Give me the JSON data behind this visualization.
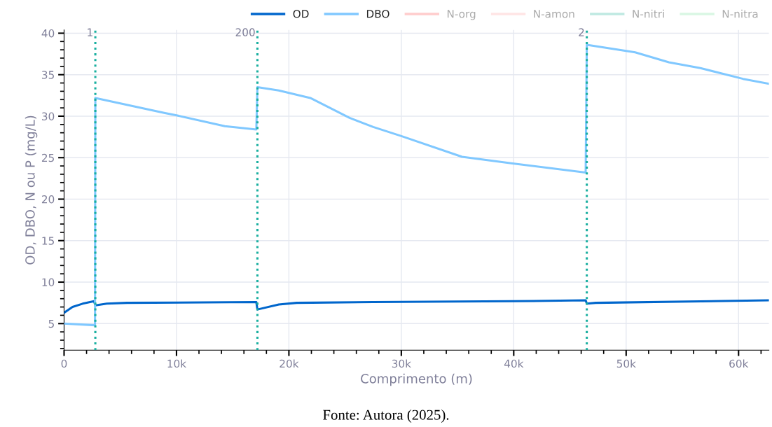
{
  "chart_data": {
    "type": "line",
    "xlabel": "Comprimento (m)",
    "ylabel": "OD, DBO, N ou P (mg/L)",
    "xlim": [
      0,
      62700
    ],
    "ylim": [
      1.8,
      40.4
    ],
    "xticks": [
      {
        "value": 0,
        "label": "0"
      },
      {
        "value": 10000,
        "label": "10k"
      },
      {
        "value": 20000,
        "label": "20k"
      },
      {
        "value": 30000,
        "label": "30k"
      },
      {
        "value": 40000,
        "label": "40k"
      },
      {
        "value": 50000,
        "label": "50k"
      },
      {
        "value": 60000,
        "label": "60k"
      }
    ],
    "yticks": [
      5,
      10,
      15,
      20,
      25,
      30,
      35,
      40
    ],
    "grid": true,
    "legend": "top right",
    "line_style": "solid",
    "marker": "none",
    "series": [
      {
        "name": "OD",
        "color": "#0066cc",
        "x": [
          0,
          750,
          1650,
          2670,
          2780,
          3800,
          5600,
          17100,
          17200,
          19100,
          20700,
          27500,
          39900,
          46400,
          46500,
          47300,
          62700
        ],
        "values": [
          6.3,
          7.0,
          7.4,
          7.7,
          7.2,
          7.4,
          7.5,
          7.6,
          6.7,
          7.3,
          7.5,
          7.6,
          7.7,
          7.8,
          7.4,
          7.5,
          7.8
        ]
      },
      {
        "name": "DBO",
        "color": "#80c8ff",
        "x": [
          0,
          2750,
          2780,
          8900,
          10000,
          14300,
          17100,
          17200,
          19100,
          21900,
          25400,
          27500,
          30000,
          35400,
          39900,
          46400,
          46500,
          50800,
          53800,
          56600,
          60400,
          62700
        ],
        "values": [
          5.0,
          4.8,
          32.2,
          30.4,
          30.1,
          28.8,
          28.4,
          33.5,
          33.1,
          32.2,
          29.8,
          28.7,
          27.6,
          25.1,
          24.3,
          23.2,
          38.6,
          37.7,
          36.5,
          35.8,
          34.5,
          33.9
        ]
      },
      {
        "name": "N-org",
        "color": "#ff9999"
      },
      {
        "name": "N-amon",
        "color": "#ffcccc"
      },
      {
        "name": "N-nitri",
        "color": "#80d4c4"
      },
      {
        "name": "N-nitra",
        "color": "#b3f0c8"
      }
    ],
    "ref_lines": [
      {
        "axis": "x",
        "value": 2780,
        "color": "#1aafa0",
        "line_style": "dotted"
      },
      {
        "axis": "x",
        "value": 17200,
        "color": "#1aafa0",
        "line_style": "dotted"
      },
      {
        "axis": "x",
        "value": 46500,
        "color": "#1aafa0",
        "line_style": "dotted"
      }
    ],
    "annotations": [
      {
        "text": "1",
        "x": 2780,
        "y": 40
      },
      {
        "text": "200",
        "x": 17200,
        "y": 40
      },
      {
        "text": "2",
        "x": 46500,
        "y": 40
      },
      "Fonte: Autora (2025)."
    ]
  }
}
